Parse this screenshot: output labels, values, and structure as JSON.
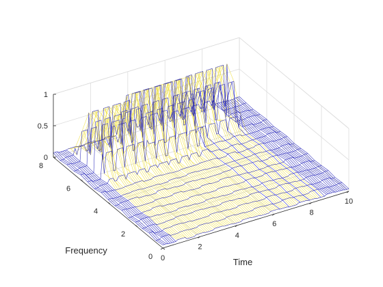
{
  "chart_data": {
    "type": "surface",
    "view": "3d-mesh",
    "xlabel": "Time",
    "ylabel": "Frequency",
    "zlabel": "",
    "xlim": [
      0,
      10
    ],
    "ylim": [
      0,
      8
    ],
    "zlim": [
      0,
      1
    ],
    "xticks": [
      0,
      2,
      4,
      6,
      8,
      10
    ],
    "yticks": [
      0,
      2,
      4,
      6,
      8
    ],
    "zticks": [
      0,
      0.5,
      1
    ],
    "zticklabels": [
      "0",
      "0.5",
      "1"
    ],
    "grid": true,
    "mesh_color_low": "#1f1fb8",
    "mesh_color_high": "#f0e040",
    "surface_rows": [
      {
        "t": 0.0,
        "f": [
          0.05,
          0.03,
          0.06,
          0.04,
          0.05,
          0.03,
          0.06,
          0.04,
          0.05,
          0.07,
          0.04,
          0.06,
          0.08,
          0.05,
          0.06,
          0.04,
          0.07
        ]
      },
      {
        "t": 0.5,
        "f": [
          0.04,
          0.06,
          0.03,
          0.05,
          0.07,
          0.04,
          0.05,
          0.06,
          0.04,
          0.05,
          0.06,
          0.04,
          0.05,
          0.07,
          0.05,
          0.06,
          0.05
        ]
      },
      {
        "t": 1.0,
        "f": [
          0.06,
          0.04,
          0.05,
          0.03,
          0.06,
          0.05,
          0.04,
          0.07,
          0.05,
          0.04,
          0.06,
          0.05,
          0.07,
          0.05,
          0.04,
          0.05,
          0.06
        ]
      },
      {
        "t": 1.5,
        "f": [
          0.03,
          0.05,
          0.06,
          0.04,
          0.05,
          0.07,
          0.04,
          0.05,
          0.06,
          0.05,
          0.04,
          0.07,
          0.06,
          0.04,
          0.05,
          0.06,
          0.05
        ]
      },
      {
        "t": 2.0,
        "f": [
          0.05,
          0.04,
          0.05,
          0.06,
          0.04,
          0.05,
          0.06,
          0.04,
          0.05,
          0.06,
          0.05,
          0.04,
          0.06,
          0.07,
          0.05,
          0.04,
          0.06
        ]
      },
      {
        "t": 2.5,
        "f": [
          0.04,
          0.06,
          0.04,
          0.05,
          0.06,
          0.04,
          0.05,
          0.07,
          0.05,
          0.04,
          0.06,
          0.05,
          0.04,
          0.06,
          0.07,
          0.05,
          0.04
        ]
      },
      {
        "t": 3.0,
        "f": [
          0.06,
          0.05,
          0.04,
          0.06,
          0.05,
          0.04,
          0.07,
          0.05,
          0.04,
          0.06,
          0.05,
          0.07,
          0.05,
          0.04,
          0.06,
          0.05,
          0.06
        ]
      },
      {
        "t": 3.5,
        "f": [
          0.05,
          0.04,
          0.06,
          0.05,
          0.04,
          0.06,
          0.05,
          0.04,
          0.06,
          0.05,
          0.07,
          0.04,
          0.06,
          0.05,
          0.04,
          0.06,
          0.05
        ]
      },
      {
        "t": 4.0,
        "f": [
          0.04,
          0.06,
          0.05,
          0.04,
          0.06,
          0.05,
          0.04,
          0.06,
          0.05,
          0.04,
          0.06,
          0.05,
          0.04,
          0.07,
          0.05,
          0.06,
          0.04
        ]
      },
      {
        "t": 4.5,
        "f": [
          0.06,
          0.05,
          0.04,
          0.06,
          0.05,
          0.04,
          0.06,
          0.05,
          0.07,
          0.05,
          0.04,
          0.06,
          0.05,
          0.04,
          0.06,
          0.05,
          0.07
        ]
      },
      {
        "t": 5.0,
        "f": [
          0.05,
          0.04,
          0.06,
          0.05,
          0.04,
          0.06,
          0.05,
          0.04,
          0.06,
          0.05,
          0.04,
          0.06,
          0.07,
          0.05,
          0.04,
          0.06,
          0.05
        ]
      },
      {
        "t": 5.5,
        "f": [
          0.04,
          0.06,
          0.05,
          0.04,
          0.06,
          0.05,
          0.07,
          0.04,
          0.05,
          0.06,
          0.05,
          0.04,
          0.06,
          0.05,
          0.07,
          0.04,
          0.06
        ]
      },
      {
        "t": 6.0,
        "f": [
          0.06,
          0.05,
          0.04,
          0.06,
          0.05,
          0.04,
          0.06,
          0.05,
          0.04,
          0.06,
          0.07,
          0.05,
          0.04,
          0.06,
          0.05,
          0.04,
          0.06
        ]
      },
      {
        "t": 6.5,
        "f": [
          0.05,
          0.04,
          0.06,
          0.05,
          0.04,
          0.06,
          0.05,
          0.07,
          0.05,
          0.04,
          0.06,
          0.05,
          0.04,
          0.06,
          0.05,
          0.07,
          0.05
        ]
      },
      {
        "t": 7.0,
        "f": [
          0.04,
          0.06,
          0.05,
          0.04,
          0.06,
          0.05,
          0.04,
          0.06,
          0.05,
          0.07,
          0.04,
          0.06,
          0.05,
          0.04,
          0.06,
          0.05,
          0.04
        ]
      },
      {
        "t": 7.5,
        "f": [
          0.06,
          0.05,
          0.04,
          0.06,
          0.05,
          0.07,
          0.04,
          0.06,
          0.05,
          0.04,
          0.06,
          0.05,
          0.07,
          0.05,
          0.04,
          0.06,
          0.05
        ]
      },
      {
        "t": 8.0,
        "f": [
          0.05,
          0.04,
          0.06,
          0.05,
          0.04,
          0.06,
          0.05,
          0.04,
          0.06,
          0.05,
          0.04,
          0.07,
          0.05,
          0.06,
          0.05,
          0.04,
          0.06
        ]
      },
      {
        "t": 8.5,
        "f": [
          0.04,
          0.06,
          0.05,
          0.04,
          0.06,
          0.05,
          0.04,
          0.06,
          0.05,
          0.07,
          0.05,
          0.04,
          0.06,
          0.05,
          0.04,
          0.06,
          0.05
        ]
      },
      {
        "t": 9.0,
        "f": [
          0.06,
          0.05,
          0.04,
          0.06,
          0.05,
          0.04,
          0.07,
          0.05,
          0.04,
          0.06,
          0.05,
          0.04,
          0.06,
          0.05,
          0.07,
          0.04,
          0.06
        ]
      },
      {
        "t": 9.5,
        "f": [
          0.05,
          0.04,
          0.06,
          0.05,
          0.04,
          0.06,
          0.05,
          0.04,
          0.06,
          0.05,
          0.07,
          0.05,
          0.04,
          0.06,
          0.05,
          0.04,
          0.05
        ]
      },
      {
        "t": 10.0,
        "f": [
          0.04,
          0.05,
          0.04,
          0.06,
          0.05,
          0.04,
          0.06,
          0.05,
          0.04,
          0.06,
          0.05,
          0.04,
          0.06,
          0.05,
          0.04,
          0.05,
          0.06
        ]
      }
    ],
    "frequency_grid": [
      0,
      0.5,
      1,
      1.5,
      2,
      2.5,
      3,
      3.5,
      4,
      4.5,
      5,
      5.5,
      6,
      6.5,
      7,
      7.5,
      8
    ],
    "ridges": [
      {
        "t_start": 0.8,
        "t_end": 3.2,
        "f_center": 6.3,
        "f_width": 0.9,
        "amplitude": 0.95
      },
      {
        "t_start": 3.2,
        "t_end": 6.2,
        "f_center": 6.6,
        "f_width": 1.1,
        "amplitude": 1.0
      },
      {
        "t_start": 6.2,
        "t_end": 8.6,
        "f_center": 6.9,
        "f_width": 0.8,
        "amplitude": 0.9
      }
    ]
  }
}
